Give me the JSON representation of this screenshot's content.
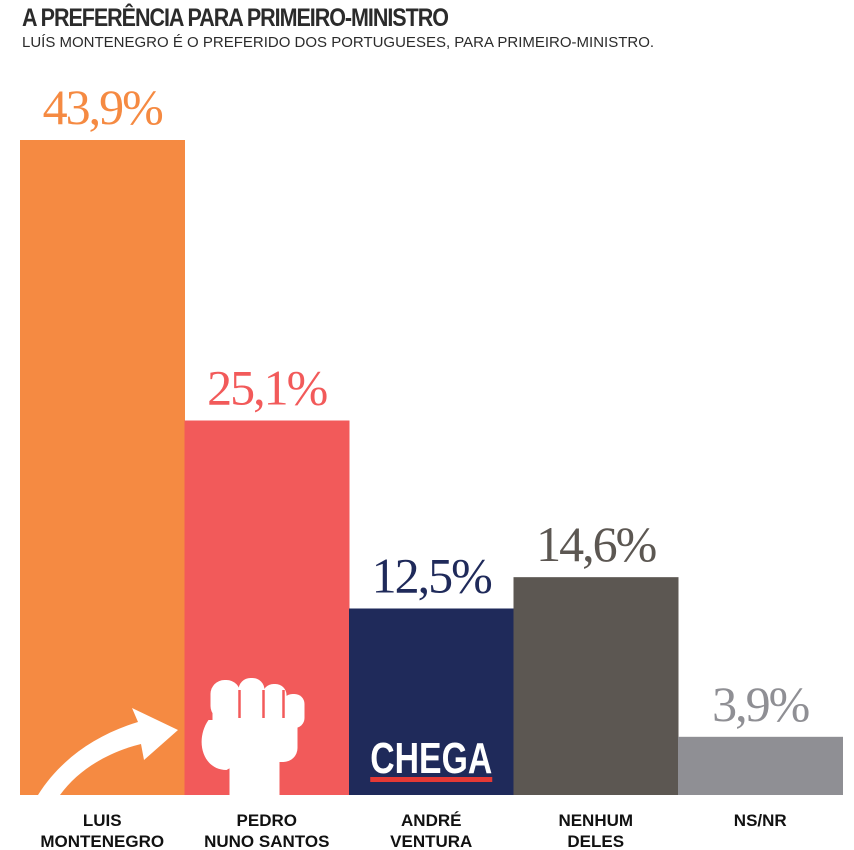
{
  "title": "A PREFERÊNCIA PARA PRIMEIRO-MINISTRO",
  "subtitle": "LUÍS MONTENEGRO É O PREFERIDO DOS PORTUGUESES, PARA PRIMEIRO-MINISTRO.",
  "chart_data": {
    "type": "bar",
    "categories": [
      [
        "LUIS",
        "MONTENEGRO"
      ],
      [
        "PEDRO",
        "NUNO SANTOS"
      ],
      [
        "ANDRÉ",
        "VENTURA"
      ],
      [
        "NENHUM",
        "DELES"
      ],
      [
        "NS/NR"
      ]
    ],
    "values": [
      43.9,
      25.1,
      12.5,
      14.6,
      3.9
    ],
    "value_labels": [
      "43,9%",
      "25,1%",
      "12,5%",
      "14,6%",
      "3,9%"
    ],
    "ylim": [
      0,
      43.9
    ],
    "grid": false,
    "bar_colors": [
      "#f58a42",
      "#f25a5a",
      "#1f2a5a",
      "#5c5752",
      "#8f8f94"
    ],
    "label_colors": [
      "#f58a42",
      "#f25a5a",
      "#1f2a5a",
      "#5c5752",
      "#8f8f94"
    ],
    "bar_icons": [
      "arrow-up-icon",
      "fist-icon",
      "chega-logo",
      null,
      null
    ],
    "logo_text": "CHEGA"
  }
}
